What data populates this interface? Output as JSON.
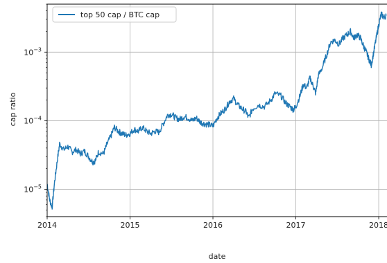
{
  "chart_data": {
    "type": "line",
    "xlabel": "date",
    "ylabel": "cap ratio",
    "yscale": "log",
    "grid": true,
    "legend_position": "top-left",
    "ylim": [
      4e-06,
      0.005
    ],
    "xlim": [
      2014.0,
      2018.1
    ],
    "x_ticks": [
      {
        "value": 2014,
        "label": "2014"
      },
      {
        "value": 2015,
        "label": "2015"
      },
      {
        "value": 2016,
        "label": "2016"
      },
      {
        "value": 2017,
        "label": "2017"
      },
      {
        "value": 2018,
        "label": "2018"
      }
    ],
    "y_ticks": [
      {
        "value": 1e-05,
        "base": "10",
        "exp": "−5"
      },
      {
        "value": 0.0001,
        "base": "10",
        "exp": "−4"
      },
      {
        "value": 0.001,
        "base": "10",
        "exp": "−3"
      }
    ],
    "series": [
      {
        "name": "top 50 cap / BTC cap",
        "color": "#1f77b4",
        "points": [
          [
            2014.0,
            1.2e-05
          ],
          [
            2014.03,
            7e-06
          ],
          [
            2014.06,
            5.5e-06
          ],
          [
            2014.09,
            1.3e-05
          ],
          [
            2014.12,
            2.5e-05
          ],
          [
            2014.15,
            4.6e-05
          ],
          [
            2014.2,
            3.8e-05
          ],
          [
            2014.25,
            4.2e-05
          ],
          [
            2014.3,
            3.5e-05
          ],
          [
            2014.35,
            3.8e-05
          ],
          [
            2014.4,
            3.3e-05
          ],
          [
            2014.45,
            3.6e-05
          ],
          [
            2014.5,
            3e-05
          ],
          [
            2014.55,
            2.5e-05
          ],
          [
            2014.58,
            2.6e-05
          ],
          [
            2014.62,
            3.5e-05
          ],
          [
            2014.68,
            3.3e-05
          ],
          [
            2014.72,
            4.5e-05
          ],
          [
            2014.77,
            6e-05
          ],
          [
            2014.81,
            8e-05
          ],
          [
            2014.86,
            7e-05
          ],
          [
            2014.9,
            6.5e-05
          ],
          [
            2014.95,
            6.2e-05
          ],
          [
            2015.0,
            6.5e-05
          ],
          [
            2015.05,
            7.5e-05
          ],
          [
            2015.1,
            7e-05
          ],
          [
            2015.15,
            8e-05
          ],
          [
            2015.2,
            7e-05
          ],
          [
            2015.25,
            6.5e-05
          ],
          [
            2015.3,
            7e-05
          ],
          [
            2015.35,
            6.8e-05
          ],
          [
            2015.4,
            9e-05
          ],
          [
            2015.45,
            0.00012
          ],
          [
            2015.5,
            0.000125
          ],
          [
            2015.55,
            0.00011
          ],
          [
            2015.6,
            0.000105
          ],
          [
            2015.65,
            0.000115
          ],
          [
            2015.7,
            0.00011
          ],
          [
            2015.75,
            0.0001
          ],
          [
            2015.8,
            0.00011
          ],
          [
            2015.85,
            9.5e-05
          ],
          [
            2015.9,
            9e-05
          ],
          [
            2015.95,
            8.8e-05
          ],
          [
            2016.0,
            8.3e-05
          ],
          [
            2016.05,
            0.00011
          ],
          [
            2016.1,
            0.00013
          ],
          [
            2016.15,
            0.00015
          ],
          [
            2016.2,
            0.00019
          ],
          [
            2016.25,
            0.00021
          ],
          [
            2016.3,
            0.00017
          ],
          [
            2016.35,
            0.00015
          ],
          [
            2016.4,
            0.000135
          ],
          [
            2016.43,
            0.00011
          ],
          [
            2016.48,
            0.00015
          ],
          [
            2016.55,
            0.00017
          ],
          [
            2016.62,
            0.00016
          ],
          [
            2016.7,
            0.0002
          ],
          [
            2016.75,
            0.00025
          ],
          [
            2016.82,
            0.00023
          ],
          [
            2016.88,
            0.00018
          ],
          [
            2016.93,
            0.00016
          ],
          [
            2016.97,
            0.000145
          ],
          [
            2017.0,
            0.00016
          ],
          [
            2017.05,
            0.00023
          ],
          [
            2017.09,
            0.00034
          ],
          [
            2017.13,
            0.0003
          ],
          [
            2017.17,
            0.00042
          ],
          [
            2017.21,
            0.00032
          ],
          [
            2017.24,
            0.00025
          ],
          [
            2017.27,
            0.00045
          ],
          [
            2017.32,
            0.0006
          ],
          [
            2017.37,
            0.0009
          ],
          [
            2017.42,
            0.0014
          ],
          [
            2017.47,
            0.0015
          ],
          [
            2017.52,
            0.0013
          ],
          [
            2017.57,
            0.0016
          ],
          [
            2017.62,
            0.0018
          ],
          [
            2017.66,
            0.002
          ],
          [
            2017.7,
            0.0016
          ],
          [
            2017.74,
            0.0018
          ],
          [
            2017.78,
            0.0016
          ],
          [
            2017.82,
            0.0012
          ],
          [
            2017.85,
            0.001
          ],
          [
            2017.88,
            0.0008
          ],
          [
            2017.91,
            0.00065
          ],
          [
            2017.94,
            0.001
          ],
          [
            2017.97,
            0.0016
          ],
          [
            2018.0,
            0.0025
          ],
          [
            2018.03,
            0.0036
          ],
          [
            2018.06,
            0.0032
          ],
          [
            2018.09,
            0.0034
          ]
        ]
      }
    ]
  }
}
